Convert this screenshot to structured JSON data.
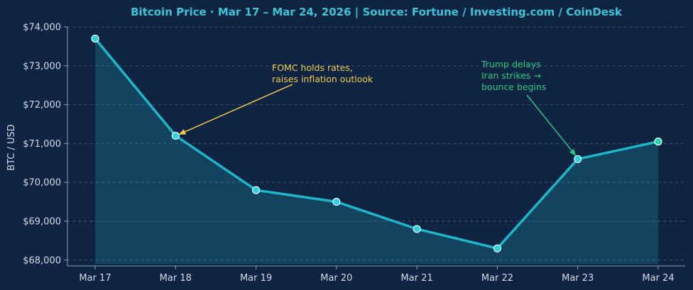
{
  "chart_data": {
    "type": "line",
    "title": "Bitcoin Price  ·  Mar 17 – Mar 24, 2026  |  Source: Fortune / Investing.com / CoinDesk",
    "xlabel": "",
    "ylabel": "BTC / USD",
    "categories": [
      "Mar 17",
      "Mar 18",
      "Mar 19",
      "Mar 20",
      "Mar 21",
      "Mar 22",
      "Mar 23",
      "Mar 24"
    ],
    "series": [
      {
        "values": [
          73700,
          71200,
          69800,
          69500,
          68800,
          68300,
          70600,
          71050
        ]
      }
    ],
    "ylim": [
      67850,
      74000
    ],
    "yticks": [
      68000,
      69000,
      70000,
      71000,
      72000,
      73000,
      74000
    ],
    "ytick_labels": [
      "$68,000",
      "$69,000",
      "$70,000",
      "$71,000",
      "$72,000",
      "$73,000",
      "$74,000"
    ],
    "grid": true,
    "area_fill": true,
    "colors": {
      "background": "#0f2342",
      "line": "#1eb6c8",
      "marker": "#2fd0e0",
      "marker_last": "#27d3a8",
      "title": "#3cc4d8",
      "annotation_fomc": "#f2c94c",
      "annotation_trump": "#27c97e"
    },
    "annotations": [
      {
        "lines": [
          "FOMC holds rates,",
          "raises inflation outlook"
        ],
        "target_category": "Mar 18",
        "target_value": 71200,
        "color": "#f2c94c"
      },
      {
        "lines": [
          "Trump delays",
          "Iran strikes →",
          "bounce begins"
        ],
        "target_category": "Mar 23",
        "target_value": 70600,
        "color": "#27c97e"
      }
    ]
  }
}
